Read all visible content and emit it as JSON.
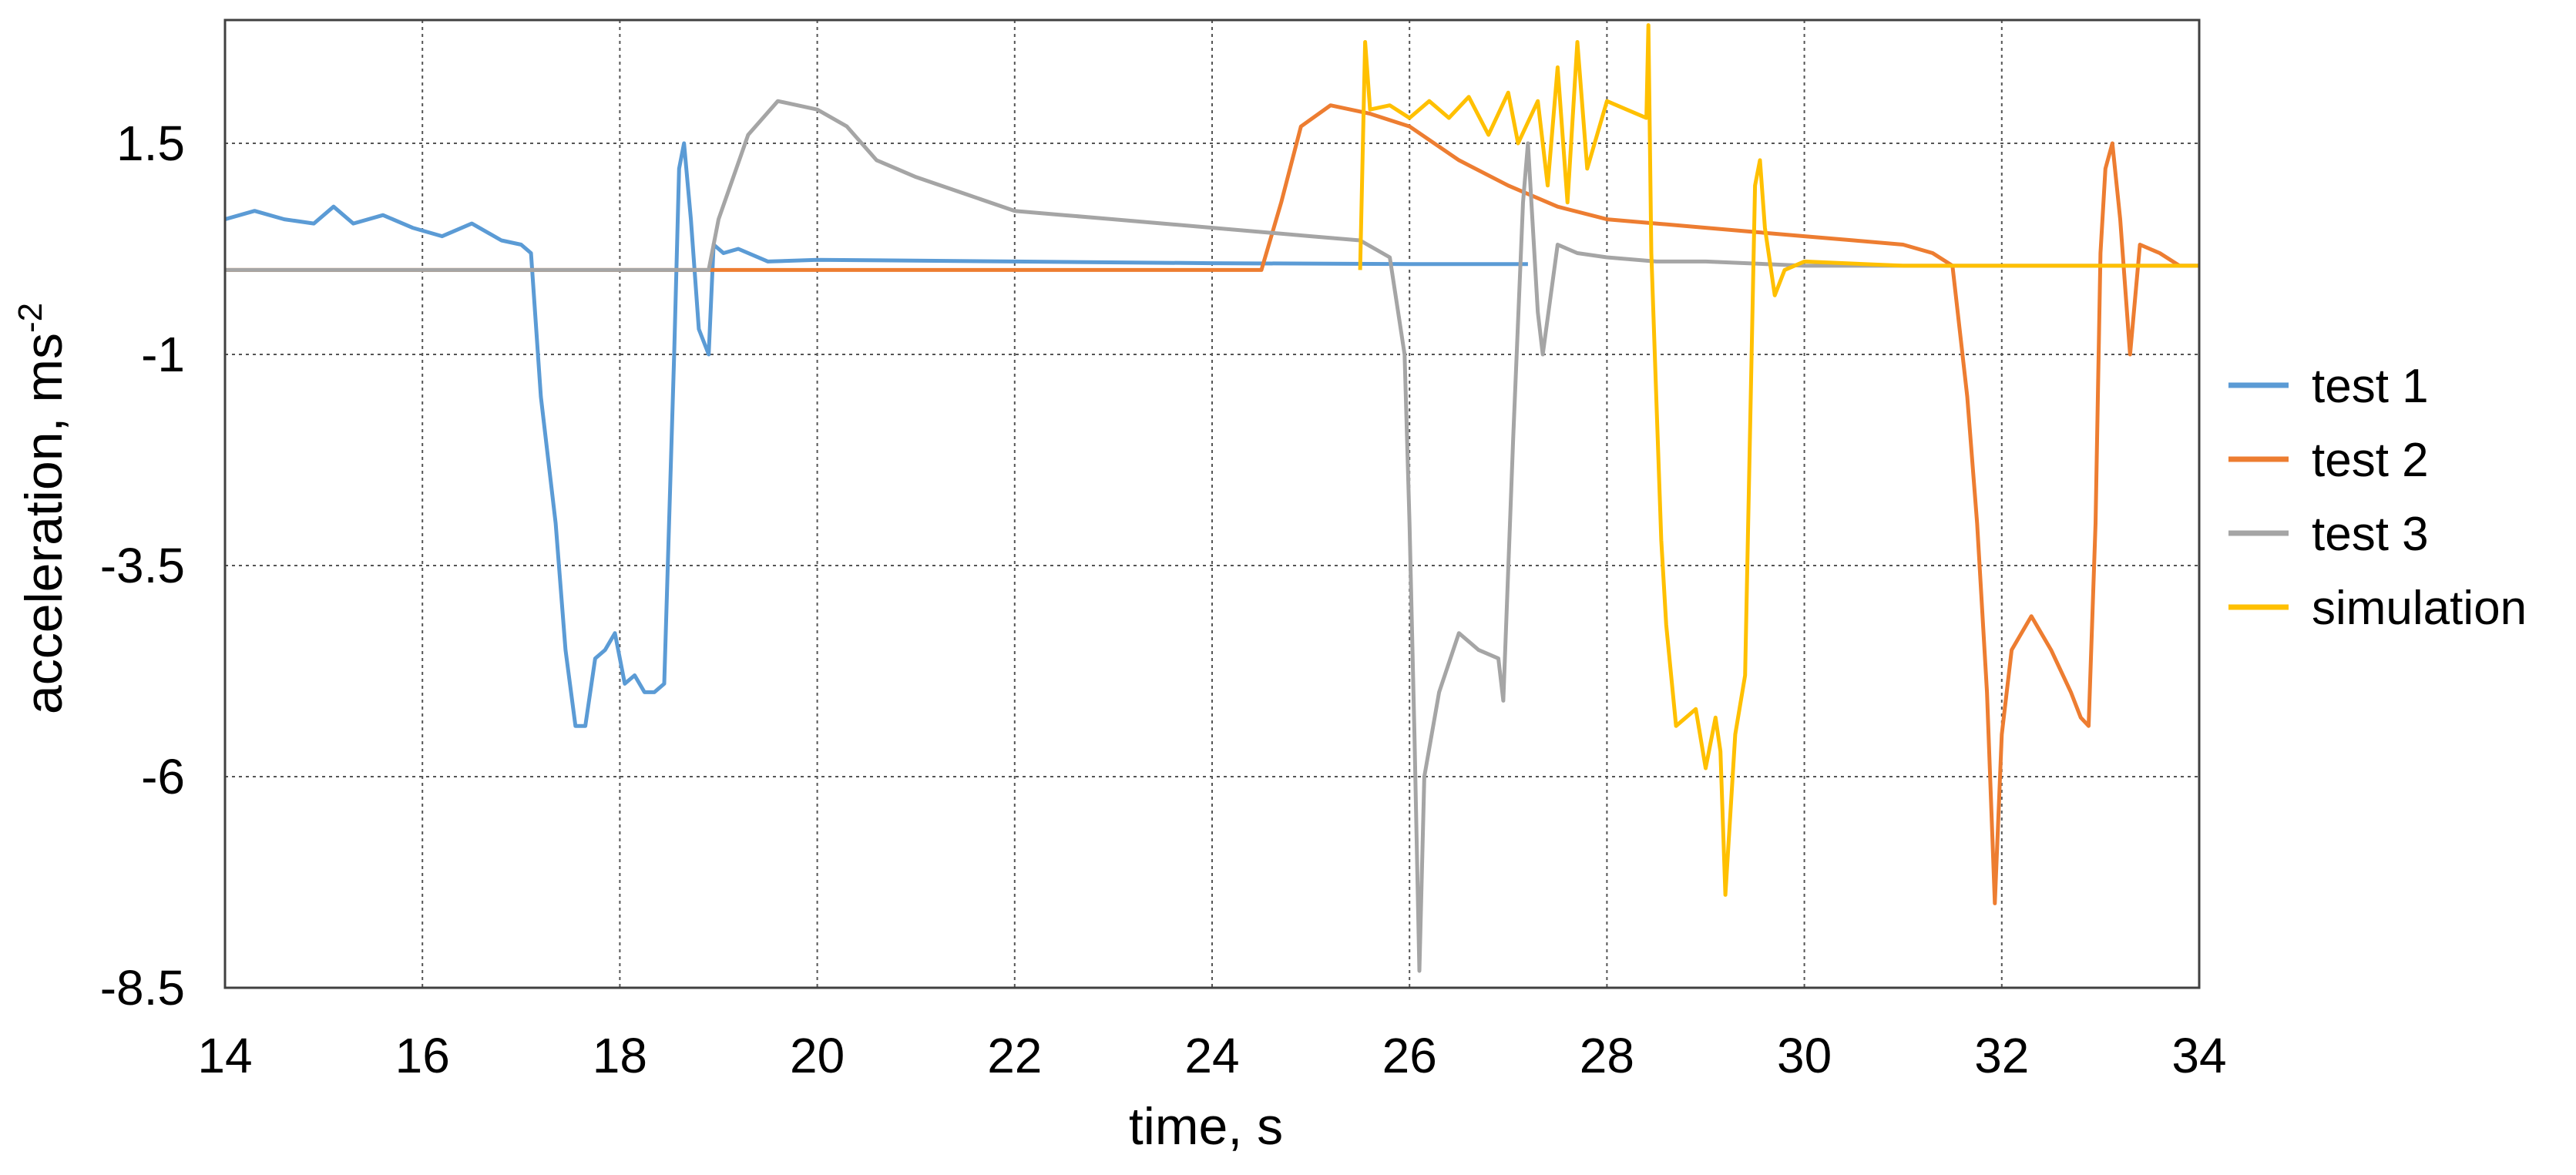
{
  "chart_data": {
    "type": "line",
    "title": "",
    "xlabel": "time, s",
    "ylabel": "acceleration, ms",
    "ylabel_superscript": "-2",
    "xlim": [
      14,
      34
    ],
    "ylim": [
      -8.5,
      3
    ],
    "x_ticks": [
      14,
      16,
      18,
      20,
      22,
      24,
      26,
      28,
      30,
      32,
      34
    ],
    "x_tick_labels": [
      "14",
      "16",
      "18",
      "20",
      "22",
      "24",
      "26",
      "28",
      "30",
      "32",
      "34"
    ],
    "y_ticks": [
      1.5,
      -1,
      -3.5,
      -6,
      -8.5
    ],
    "y_tick_labels": [
      "1.5",
      "-1",
      "-3.5",
      "-6",
      "-8.5"
    ],
    "grid": true,
    "grid_style": "dotted",
    "legend_position": "right",
    "series": [
      {
        "name": "test 1",
        "color": "#5b9bd5",
        "points": [
          [
            14.0,
            0.6
          ],
          [
            14.3,
            0.7
          ],
          [
            14.6,
            0.6
          ],
          [
            14.9,
            0.55
          ],
          [
            15.1,
            0.75
          ],
          [
            15.3,
            0.55
          ],
          [
            15.6,
            0.65
          ],
          [
            15.9,
            0.5
          ],
          [
            16.2,
            0.4
          ],
          [
            16.5,
            0.55
          ],
          [
            16.8,
            0.35
          ],
          [
            17.0,
            0.3
          ],
          [
            17.1,
            0.2
          ],
          [
            17.2,
            -1.5
          ],
          [
            17.35,
            -3.0
          ],
          [
            17.45,
            -4.5
          ],
          [
            17.55,
            -5.4
          ],
          [
            17.65,
            -5.4
          ],
          [
            17.75,
            -4.6
          ],
          [
            17.85,
            -4.5
          ],
          [
            17.95,
            -4.3
          ],
          [
            18.05,
            -4.9
          ],
          [
            18.15,
            -4.8
          ],
          [
            18.25,
            -5.0
          ],
          [
            18.35,
            -5.0
          ],
          [
            18.45,
            -4.9
          ],
          [
            18.55,
            -1.0
          ],
          [
            18.6,
            1.2
          ],
          [
            18.65,
            1.5
          ],
          [
            18.72,
            0.6
          ],
          [
            18.8,
            -0.7
          ],
          [
            18.9,
            -1.0
          ],
          [
            18.95,
            0.3
          ],
          [
            19.05,
            0.2
          ],
          [
            19.2,
            0.25
          ],
          [
            19.5,
            0.1
          ],
          [
            20.0,
            0.12
          ],
          [
            22.0,
            0.1
          ],
          [
            24.0,
            0.08
          ],
          [
            26.0,
            0.07
          ],
          [
            27.2,
            0.07
          ]
        ]
      },
      {
        "name": "test 2",
        "color": "#ed7d31",
        "points": [
          [
            14.0,
            0.0
          ],
          [
            15.5,
            0.0
          ],
          [
            17.0,
            0.0
          ],
          [
            18.0,
            0.0
          ],
          [
            19.0,
            0.0
          ],
          [
            20.0,
            0.0
          ],
          [
            22.0,
            0.0
          ],
          [
            24.0,
            0.0
          ],
          [
            24.5,
            0.0
          ],
          [
            24.7,
            0.8
          ],
          [
            24.9,
            1.7
          ],
          [
            25.2,
            1.95
          ],
          [
            25.6,
            1.85
          ],
          [
            26.0,
            1.7
          ],
          [
            26.5,
            1.3
          ],
          [
            27.0,
            1.0
          ],
          [
            27.5,
            0.75
          ],
          [
            28.0,
            0.6
          ],
          [
            28.5,
            0.55
          ],
          [
            29.0,
            0.5
          ],
          [
            29.5,
            0.45
          ],
          [
            30.0,
            0.4
          ],
          [
            30.5,
            0.35
          ],
          [
            31.0,
            0.3
          ],
          [
            31.3,
            0.2
          ],
          [
            31.5,
            0.05
          ],
          [
            31.65,
            -1.5
          ],
          [
            31.75,
            -3.0
          ],
          [
            31.85,
            -5.0
          ],
          [
            31.93,
            -7.5
          ],
          [
            32.0,
            -5.5
          ],
          [
            32.1,
            -4.5
          ],
          [
            32.3,
            -4.1
          ],
          [
            32.5,
            -4.5
          ],
          [
            32.7,
            -5.0
          ],
          [
            32.8,
            -5.3
          ],
          [
            32.88,
            -5.4
          ],
          [
            32.95,
            -3.0
          ],
          [
            33.0,
            0.2
          ],
          [
            33.05,
            1.2
          ],
          [
            33.12,
            1.5
          ],
          [
            33.2,
            0.6
          ],
          [
            33.3,
            -1.0
          ],
          [
            33.4,
            0.3
          ],
          [
            33.6,
            0.2
          ],
          [
            33.8,
            0.05
          ],
          [
            34.0,
            0.05
          ]
        ]
      },
      {
        "name": "test 3",
        "color": "#a5a5a5",
        "points": [
          [
            14.0,
            0.0
          ],
          [
            16.0,
            0.0
          ],
          [
            18.0,
            0.0
          ],
          [
            18.9,
            0.0
          ],
          [
            19.0,
            0.6
          ],
          [
            19.3,
            1.6
          ],
          [
            19.6,
            2.0
          ],
          [
            20.0,
            1.9
          ],
          [
            20.3,
            1.7
          ],
          [
            20.6,
            1.3
          ],
          [
            21.0,
            1.1
          ],
          [
            21.5,
            0.9
          ],
          [
            22.0,
            0.7
          ],
          [
            22.5,
            0.65
          ],
          [
            23.0,
            0.6
          ],
          [
            23.5,
            0.55
          ],
          [
            24.0,
            0.5
          ],
          [
            24.5,
            0.45
          ],
          [
            25.0,
            0.4
          ],
          [
            25.5,
            0.35
          ],
          [
            25.8,
            0.15
          ],
          [
            25.95,
            -1.0
          ],
          [
            26.0,
            -3.0
          ],
          [
            26.05,
            -5.5
          ],
          [
            26.1,
            -8.3
          ],
          [
            26.15,
            -6.0
          ],
          [
            26.3,
            -5.0
          ],
          [
            26.5,
            -4.3
          ],
          [
            26.7,
            -4.5
          ],
          [
            26.9,
            -4.6
          ],
          [
            26.95,
            -5.1
          ],
          [
            27.05,
            -2.0
          ],
          [
            27.15,
            0.8
          ],
          [
            27.2,
            1.5
          ],
          [
            27.3,
            -0.5
          ],
          [
            27.35,
            -1.0
          ],
          [
            27.5,
            0.3
          ],
          [
            27.7,
            0.2
          ],
          [
            28.0,
            0.15
          ],
          [
            28.5,
            0.1
          ],
          [
            29.0,
            0.1
          ],
          [
            30.0,
            0.05
          ],
          [
            31.0,
            0.05
          ],
          [
            32.0,
            0.05
          ],
          [
            33.0,
            0.05
          ],
          [
            34.0,
            0.05
          ]
        ]
      },
      {
        "name": "simulation",
        "color": "#ffc000",
        "points": [
          [
            25.5,
            0.0
          ],
          [
            25.55,
            2.7
          ],
          [
            25.6,
            1.9
          ],
          [
            25.8,
            1.95
          ],
          [
            26.0,
            1.8
          ],
          [
            26.2,
            2.0
          ],
          [
            26.4,
            1.8
          ],
          [
            26.6,
            2.05
          ],
          [
            26.8,
            1.6
          ],
          [
            27.0,
            2.1
          ],
          [
            27.1,
            1.5
          ],
          [
            27.3,
            2.0
          ],
          [
            27.4,
            1.0
          ],
          [
            27.5,
            2.4
          ],
          [
            27.6,
            0.8
          ],
          [
            27.7,
            2.7
          ],
          [
            27.8,
            1.2
          ],
          [
            28.0,
            2.0
          ],
          [
            28.2,
            1.9
          ],
          [
            28.4,
            1.8
          ],
          [
            28.42,
            2.9
          ],
          [
            28.45,
            0.2
          ],
          [
            28.5,
            -1.5
          ],
          [
            28.55,
            -3.2
          ],
          [
            28.6,
            -4.2
          ],
          [
            28.7,
            -5.4
          ],
          [
            28.9,
            -5.2
          ],
          [
            29.0,
            -5.9
          ],
          [
            29.1,
            -5.3
          ],
          [
            29.15,
            -5.7
          ],
          [
            29.2,
            -7.4
          ],
          [
            29.3,
            -5.5
          ],
          [
            29.4,
            -4.8
          ],
          [
            29.5,
            1.0
          ],
          [
            29.55,
            1.3
          ],
          [
            29.6,
            0.5
          ],
          [
            29.7,
            -0.3
          ],
          [
            29.8,
            0.0
          ],
          [
            30.0,
            0.1
          ],
          [
            31.0,
            0.05
          ],
          [
            32.0,
            0.05
          ],
          [
            33.0,
            0.05
          ],
          [
            34.0,
            0.05
          ]
        ]
      }
    ]
  }
}
